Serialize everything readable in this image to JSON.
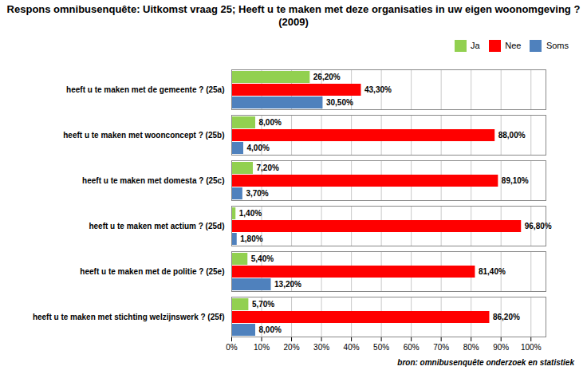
{
  "chart_data": {
    "type": "bar",
    "orientation": "horizontal",
    "title": "Respons omnibusenquête: Uitkomst vraag  25;  Heeft u  te maken met deze organisaties in uw eigen woonomgeving ? (2009)",
    "categories": [
      "heeft u te maken met de gemeente ? (25a)",
      "heeft u te maken met woonconcept ? (25b)",
      "heeft u te maken met domesta ? (25c)",
      "heeft u te maken met actium ? (25d)",
      "heeft u te maken met de politie ? (25e)",
      "heeft u te maken met stichting welzijnswerk ? (25f)"
    ],
    "series": [
      {
        "name": "Ja",
        "color": "#92d050",
        "values": [
          26.2,
          8.0,
          7.2,
          1.4,
          5.4,
          5.7
        ],
        "value_labels": [
          "26,20%",
          "8,00%",
          "7,20%",
          "1,40%",
          "5,40%",
          "5,70%"
        ]
      },
      {
        "name": "Nee",
        "color": "#ff0000",
        "values": [
          43.3,
          88.0,
          89.1,
          96.8,
          81.4,
          86.2
        ],
        "value_labels": [
          "43,30%",
          "88,00%",
          "89,10%",
          "96,80%",
          "81,40%",
          "86,20%"
        ]
      },
      {
        "name": "Soms",
        "color": "#4f81bd",
        "values": [
          30.5,
          4.0,
          3.7,
          1.8,
          13.2,
          8.0
        ],
        "value_labels": [
          "30,50%",
          "4,00%",
          "3,70%",
          "1,80%",
          "13,20%",
          "8,00%"
        ]
      }
    ],
    "xlim": [
      0,
      105
    ],
    "xticks": [
      {
        "value": 0,
        "label": "0%"
      },
      {
        "value": 10,
        "label": "10%"
      },
      {
        "value": 20,
        "label": "20%"
      },
      {
        "value": 30,
        "label": "30%"
      },
      {
        "value": 40,
        "label": "40%"
      },
      {
        "value": 50,
        "label": "50%"
      },
      {
        "value": 60,
        "label": "60%"
      },
      {
        "value": 70,
        "label": "70%"
      },
      {
        "value": 80,
        "label": "80%"
      },
      {
        "value": 90,
        "label": "90%"
      },
      {
        "value": 100,
        "label": "100%"
      }
    ],
    "grid": true,
    "legend": "upper right",
    "data_labels": true,
    "footer": "bron: omnibusenquête onderzoek en statistiek"
  }
}
